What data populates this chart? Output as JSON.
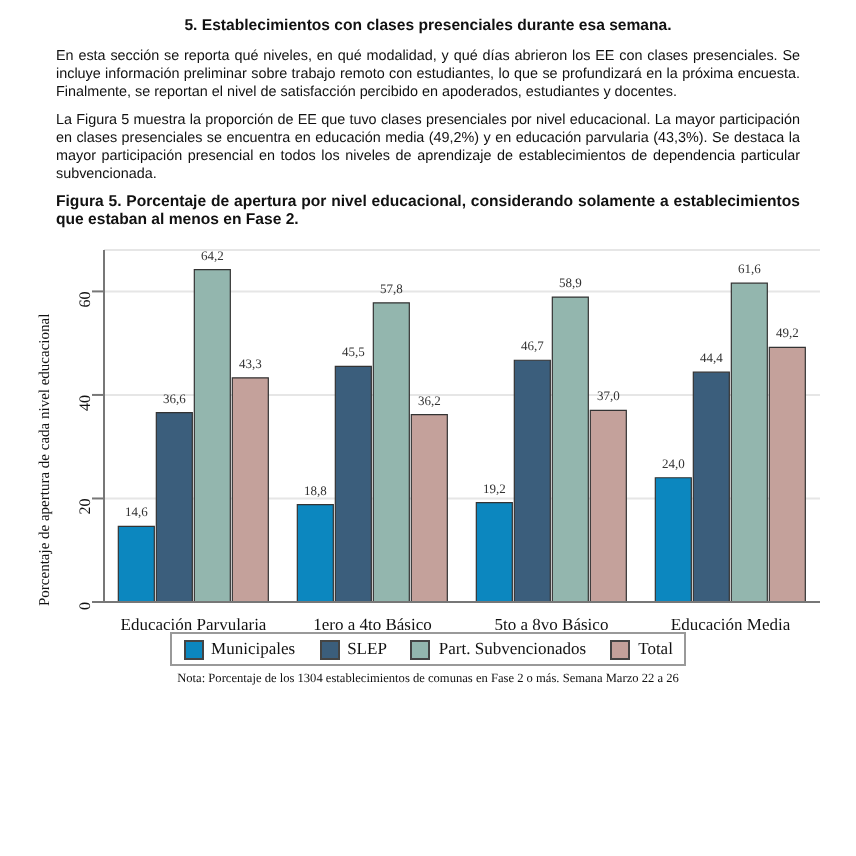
{
  "chart_data": {
    "type": "bar",
    "title": "Figura 5. Porcentaje de apertura por nivel educacional, considerando solamente a establecimientos que estaban al menos en Fase 2.",
    "annotations": [
      "5.   Establecimientos con clases presenciales durante esa semana.",
      "En esta sección se reporta qué niveles, en qué modalidad, y qué días abrieron los EE con clases presenciales. Se incluye información preliminar sobre trabajo remoto con estudiantes, lo que se profundizará en la próxima encuesta. Finalmente, se reportan el nivel de satisfacción percibido en apoderados, estudiantes y docentes.",
      "La Figura 5 muestra la proporción de EE que tuvo clases presenciales por nivel educacional. La mayor participación en clases presenciales se encuentra en educación media (49,2%) y en educación parvularia (43,3%). Se destaca la mayor participación presencial en todos los niveles de aprendizaje de establecimientos de dependencia particular subvencionada.",
      "Nota: Porcentaje de los 1304 establecimientos de comunas en Fase 2 o más. Semana Marzo 22 a 26"
    ],
    "ylabel": "Porcentaje de apertura de cada nivel educacional",
    "categories": [
      "Educación Parvularia",
      "1ero a 4to Básico",
      "5to a 8vo Básico",
      "Educación Media"
    ],
    "series": [
      {
        "name": "Municipales",
        "color": "#0c87bf",
        "values": [
          14.6,
          18.8,
          19.2,
          24.0
        ],
        "value_labels": [
          "14,6",
          "18,8",
          "19,2",
          "24,0"
        ]
      },
      {
        "name": "SLEP",
        "color": "#3b5e7c",
        "values": [
          36.6,
          45.5,
          46.7,
          44.4
        ],
        "value_labels": [
          "36,6",
          "45,5",
          "46,7",
          "44,4"
        ]
      },
      {
        "name": "Part. Subvencionados",
        "color": "#93b6ae",
        "values": [
          64.2,
          57.8,
          58.9,
          61.6
        ],
        "value_labels": [
          "64,2",
          "57,8",
          "58,9",
          "61,6"
        ]
      },
      {
        "name": "Total",
        "color": "#c4a19b",
        "values": [
          43.3,
          36.2,
          37.0,
          49.2
        ],
        "value_labels": [
          "43,3",
          "36,2",
          "37,0",
          "49,2"
        ]
      }
    ],
    "ylim": [
      0,
      68
    ],
    "yticks": [
      0,
      20,
      40,
      60
    ],
    "grid": "y",
    "legend": "bottom"
  }
}
